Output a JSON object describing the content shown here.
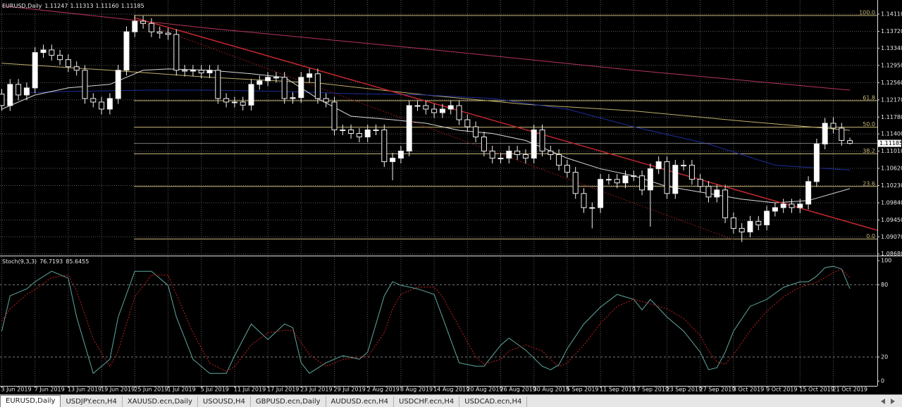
{
  "chart_data": [
    {
      "type": "candlestick",
      "title": "EURUSD,Daily",
      "ohlc_labels": [
        "1.11247",
        "1.11313",
        "1.11160",
        "1.11185"
      ],
      "categories": [
        "3 Jun 2019",
        null,
        null,
        null,
        "7 Jun 2019",
        null,
        null,
        null,
        "13 Jun 2019",
        null,
        null,
        null,
        "19 Jun 2019",
        null,
        null,
        null,
        "25 Jun 2019",
        null,
        null,
        null,
        "1 Jul 2019",
        null,
        null,
        null,
        "5 Jul 2019",
        null,
        null,
        null,
        "11 Jul 2019",
        null,
        null,
        null,
        "17 Jul 2019",
        null,
        null,
        null,
        "23 Jul 2019",
        null,
        null,
        null,
        "29 Jul 2019",
        null,
        null,
        null,
        "2 Aug 2019",
        null,
        null,
        null,
        "8 Aug 2019",
        null,
        null,
        null,
        "14 Aug 2019",
        null,
        null,
        null,
        "20 Aug 2019",
        null,
        null,
        null,
        "26 Aug 2019",
        null,
        null,
        null,
        "30 Aug 2019",
        null,
        null,
        null,
        "5 Sep 2019",
        null,
        null,
        null,
        "11 Sep 2019",
        null,
        null,
        null,
        "17 Sep 2019",
        null,
        null,
        null,
        "23 Sep 2019",
        null,
        null,
        null,
        "27 Sep 2019",
        null,
        null,
        null,
        "3 Oct 2019",
        null,
        null,
        null,
        "9 Oct 2019",
        null,
        null,
        null,
        "15 Oct 2019",
        null,
        null,
        null,
        "21 Oct 2019",
        null,
        null
      ],
      "open": [
        1.123,
        1.1204,
        1.1252,
        1.1228,
        1.1244,
        1.1324,
        1.133,
        1.1318,
        1.1308,
        1.1292,
        1.1284,
        1.122,
        1.1212,
        1.1196,
        1.122,
        1.1284,
        1.1371,
        1.1395,
        1.139,
        1.1371,
        1.1368,
        1.1365,
        1.1284,
        1.1282,
        1.1284,
        1.1278,
        1.1284,
        1.122,
        1.1212,
        1.1212,
        1.1205,
        1.1252,
        1.126,
        1.1268,
        1.1268,
        1.122,
        1.1222,
        1.1268,
        1.1276,
        1.122,
        1.1212,
        1.1149,
        1.1149,
        1.1141,
        1.1133,
        1.1149,
        1.1149,
        1.1077,
        1.1085,
        1.1101,
        1.1204,
        1.1204,
        1.1196,
        1.1188,
        1.1196,
        1.1204,
        1.1172,
        1.1156,
        1.1133,
        1.1101,
        1.1085,
        1.1085,
        1.1101,
        1.1093,
        1.1085,
        1.1149,
        1.1101,
        1.1093,
        1.1069,
        1.1053,
        1.1005,
        1.0973,
        1.0973,
        1.1037,
        1.1037,
        1.1029,
        1.1045,
        1.1045,
        1.1013,
        1.1061,
        1.1077,
        1.1005,
        1.1069,
        1.1069,
        1.1037,
        1.1021,
        1.0997,
        1.1013,
        1.095,
        1.0926,
        1.0918,
        1.0942,
        1.0934,
        1.0965,
        1.0973,
        1.0981,
        1.0973,
        1.0981,
        1.1032,
        1.1117,
        1.1164,
        1.1153,
        1.11247
      ],
      "high": [
        1.1242,
        1.1264,
        1.1264,
        1.1256,
        1.1336,
        1.1342,
        1.1342,
        1.133,
        1.132,
        1.1304,
        1.1296,
        1.1232,
        1.1224,
        1.1232,
        1.1296,
        1.1383,
        1.1408,
        1.1407,
        1.1402,
        1.1383,
        1.138,
        1.1377,
        1.1296,
        1.1296,
        1.1296,
        1.1296,
        1.1296,
        1.1232,
        1.1224,
        1.1224,
        1.1264,
        1.1272,
        1.128,
        1.128,
        1.128,
        1.1234,
        1.128,
        1.1288,
        1.1288,
        1.1232,
        1.1224,
        1.1161,
        1.1161,
        1.1153,
        1.1161,
        1.1161,
        1.1161,
        1.1097,
        1.1113,
        1.1216,
        1.1216,
        1.1216,
        1.1208,
        1.1208,
        1.1216,
        1.1216,
        1.1184,
        1.1168,
        1.1145,
        1.1113,
        1.1097,
        1.1113,
        1.1113,
        1.1105,
        1.1161,
        1.1161,
        1.1113,
        1.1105,
        1.1081,
        1.1065,
        1.1017,
        1.0985,
        1.1049,
        1.1049,
        1.1049,
        1.1057,
        1.1057,
        1.1057,
        1.1073,
        1.1089,
        1.1089,
        1.1081,
        1.1081,
        1.1081,
        1.1049,
        1.1033,
        1.1025,
        1.1025,
        1.0962,
        1.0938,
        1.0954,
        1.0954,
        1.0977,
        1.0985,
        1.0993,
        1.0993,
        1.0993,
        1.1044,
        1.1129,
        1.1176,
        1.1178,
        1.1165,
        1.11313
      ],
      "low": [
        1.1192,
        1.1192,
        1.1216,
        1.1216,
        1.1232,
        1.1312,
        1.1306,
        1.1296,
        1.128,
        1.1272,
        1.1208,
        1.12,
        1.1184,
        1.1184,
        1.1208,
        1.1272,
        1.1359,
        1.1378,
        1.1359,
        1.1356,
        1.1353,
        1.1272,
        1.127,
        1.127,
        1.1266,
        1.1266,
        1.1208,
        1.12,
        1.12,
        1.1193,
        1.1193,
        1.124,
        1.1248,
        1.1256,
        1.1208,
        1.1208,
        1.121,
        1.1256,
        1.1208,
        1.12,
        1.1137,
        1.1137,
        1.1129,
        1.1121,
        1.1121,
        1.1137,
        1.1065,
        1.1035,
        1.1073,
        1.1089,
        1.1192,
        1.1184,
        1.1176,
        1.1176,
        1.1184,
        1.116,
        1.1144,
        1.1121,
        1.1089,
        1.1073,
        1.1073,
        1.1073,
        1.1081,
        1.1073,
        1.1073,
        1.1089,
        1.1081,
        1.1057,
        1.1041,
        1.0993,
        1.0961,
        1.0926,
        1.0961,
        1.1025,
        1.1017,
        1.1017,
        1.1033,
        1.1001,
        1.093,
        1.1049,
        1.0993,
        1.0993,
        1.1057,
        1.1025,
        1.1009,
        1.0985,
        1.0985,
        1.0938,
        1.0914,
        1.0895,
        1.0906,
        1.0922,
        1.0922,
        1.0953,
        1.0961,
        1.0961,
        1.0961,
        1.0969,
        1.102,
        1.1105,
        1.1141,
        1.1113,
        1.1116
      ],
      "close": [
        1.1204,
        1.1252,
        1.1228,
        1.1244,
        1.1324,
        1.133,
        1.1318,
        1.1308,
        1.1292,
        1.1284,
        1.122,
        1.1212,
        1.1196,
        1.122,
        1.1284,
        1.1371,
        1.1395,
        1.139,
        1.1371,
        1.1368,
        1.1365,
        1.1284,
        1.1282,
        1.1284,
        1.1278,
        1.1284,
        1.122,
        1.1212,
        1.1212,
        1.1205,
        1.1252,
        1.126,
        1.1268,
        1.1268,
        1.122,
        1.1222,
        1.1268,
        1.1276,
        1.122,
        1.1212,
        1.1149,
        1.1149,
        1.1141,
        1.1133,
        1.1149,
        1.1149,
        1.1077,
        1.1085,
        1.1101,
        1.1204,
        1.1204,
        1.1196,
        1.1188,
        1.1196,
        1.1204,
        1.1172,
        1.1156,
        1.1133,
        1.1101,
        1.1085,
        1.1085,
        1.1101,
        1.1093,
        1.1085,
        1.1149,
        1.1101,
        1.1093,
        1.1069,
        1.1053,
        1.1005,
        1.0973,
        1.0973,
        1.1037,
        1.1037,
        1.1029,
        1.1045,
        1.1045,
        1.1013,
        1.1061,
        1.1077,
        1.1005,
        1.1069,
        1.1069,
        1.1037,
        1.1021,
        1.0997,
        1.1013,
        1.095,
        1.0926,
        1.0918,
        1.0942,
        1.0934,
        1.0965,
        1.0973,
        1.0981,
        1.0973,
        1.0981,
        1.1032,
        1.1117,
        1.1164,
        1.1153,
        1.1125,
        1.11185
      ],
      "bull_color": "#ffffff",
      "bear_color": "#000000",
      "moving_averages": [
        {
          "color": "#b4365a",
          "x": [
            0,
            25,
            51,
            76,
            102
          ],
          "values": [
            1.143,
            1.1379,
            1.1332,
            1.1284,
            1.1239
          ]
        },
        {
          "color": "#bfae6a",
          "x": [
            0,
            13,
            25,
            38,
            51,
            63,
            76,
            89,
            102
          ],
          "values": [
            1.13,
            1.1284,
            1.1268,
            1.1255,
            1.1228,
            1.1207,
            1.1192,
            1.1169,
            1.1148
          ]
        },
        {
          "color": "#1c2f9c",
          "x": [
            3,
            8,
            17,
            25,
            34,
            42,
            51,
            59,
            68,
            76,
            85,
            93,
            102
          ],
          "values": [
            1.1233,
            1.1236,
            1.1239,
            1.1239,
            1.1236,
            1.1231,
            1.1228,
            1.122,
            1.1196,
            1.1156,
            1.1117,
            1.1069,
            1.1058
          ]
        },
        {
          "color": "#d8d8d8",
          "x": [
            0,
            4,
            8,
            13,
            17,
            20,
            25,
            30,
            34,
            38,
            42,
            47,
            51,
            55,
            59,
            63,
            68,
            72,
            76,
            80,
            85,
            89,
            93,
            97,
            102
          ],
          "values": [
            1.1196,
            1.1228,
            1.1244,
            1.1252,
            1.1284,
            1.1287,
            1.1284,
            1.1276,
            1.1268,
            1.122,
            1.118,
            1.1172,
            1.1164,
            1.1148,
            1.1141,
            1.1125,
            1.1085,
            1.1061,
            1.1045,
            1.1021,
            1.1005,
            1.0992,
            1.0984,
            1.0989,
            1.1016
          ]
        }
      ],
      "fibo": {
        "color": "#c8b878",
        "levels": [
          {
            "label": "100.0",
            "price": 1.1408
          },
          {
            "label": "61.8",
            "price": 1.1215
          },
          {
            "label": "50.0",
            "price": 1.1155
          },
          {
            "label": "38.2",
            "price": 1.1095
          },
          {
            "label": "23.6",
            "price": 1.1021
          },
          {
            "label": "0.0",
            "price": 1.0902
          }
        ]
      },
      "ylim": [
        1.0866,
        1.1443
      ],
      "yticks": [
        {
          "value": 1.1411,
          "label": "1.14110"
        },
        {
          "value": 1.1372,
          "label": "1.13720"
        },
        {
          "value": 1.1334,
          "label": "1.13340"
        },
        {
          "value": 1.1295,
          "label": "1.12950"
        },
        {
          "value": 1.1256,
          "label": "1.12560"
        },
        {
          "value": 1.1217,
          "label": "1.12170"
        },
        {
          "value": 1.1178,
          "label": "1.11780"
        },
        {
          "value": 1.114,
          "label": "1.11400"
        },
        {
          "value": 1.1101,
          "label": "1.11010"
        },
        {
          "value": 1.1062,
          "label": "1.10620"
        },
        {
          "value": 1.1023,
          "label": "1.10230"
        },
        {
          "value": 1.0984,
          "label": "1.09840"
        },
        {
          "value": 1.0945,
          "label": "1.09450"
        },
        {
          "value": 1.0907,
          "label": "1.09070"
        },
        {
          "value": 1.0868,
          "label": "1.08680"
        }
      ],
      "grid": true
    },
    {
      "type": "line",
      "title": "Stoch(9,3,3)",
      "x": [
        0,
        1,
        3,
        4,
        6,
        8,
        9,
        11,
        13,
        14,
        16,
        18,
        20,
        21,
        23,
        25,
        27,
        28,
        30,
        32,
        34,
        35,
        36,
        37,
        39,
        41,
        43,
        44,
        46,
        47,
        48,
        50,
        52,
        53,
        55,
        57,
        58,
        60,
        61,
        63,
        65,
        66,
        67,
        68,
        70,
        72,
        74,
        76,
        77,
        78,
        80,
        82,
        84,
        85,
        86,
        87,
        88,
        90,
        92,
        94,
        96,
        97,
        98,
        99,
        100,
        101,
        102
      ],
      "series": [
        {
          "color": "#5fa8a0",
          "dashed": false,
          "values": [
            41.5,
            70.8,
            76.6,
            82.5,
            91.2,
            85.4,
            53.2,
            6.4,
            18.1,
            53.2,
            91.2,
            91.2,
            79.5,
            53.2,
            18.1,
            6.4,
            6.4,
            21.1,
            47.4,
            34.5,
            47.4,
            44.4,
            15.2,
            6.4,
            15.2,
            21.1,
            18.1,
            24.0,
            70.8,
            82.5,
            79.5,
            76.6,
            71.9,
            53.2,
            15.2,
            12.3,
            12.3,
            29.8,
            35.7,
            25.7,
            12.3,
            9.4,
            13.5,
            26.9,
            47.4,
            61.4,
            71.9,
            67.8,
            59.1,
            67.8,
            53.2,
            41.5,
            24.0,
            9.4,
            11.1,
            24.0,
            41.5,
            62.0,
            67.8,
            77.8,
            82.5,
            82.5,
            87.1,
            94.2,
            95.3,
            93.0,
            76.7193
          ]
        },
        {
          "color": "#c02020",
          "dashed": true,
          "values": [
            50,
            60,
            72,
            76,
            86,
            88,
            75,
            35,
            12,
            25,
            70,
            88,
            88,
            72,
            40,
            15,
            8,
            12,
            30,
            40,
            42,
            42,
            32,
            22,
            12,
            18,
            20,
            20,
            40,
            60,
            72,
            78,
            78,
            70,
            45,
            20,
            14,
            18,
            25,
            30,
            25,
            18,
            12,
            15,
            30,
            48,
            62,
            68,
            66,
            64,
            60,
            52,
            38,
            25,
            16,
            14,
            22,
            42,
            58,
            70,
            78,
            80,
            82,
            86,
            90,
            93,
            85.6455
          ]
        }
      ],
      "levels": [
        20,
        80
      ],
      "ylim": [
        -4,
        103
      ],
      "yticks": [
        100,
        80,
        20,
        0
      ]
    }
  ],
  "tabs": [
    "EURUSD,Daily",
    "USDJPY.ecn,H4",
    "XAUUSD.ecn,Daily",
    "USOUSD,H4",
    "GBPUSD.ecn,Daily",
    "AUDUSD.ecn,H4",
    "USDCHF.ecn,H4",
    "USDCAD.ecn,H4"
  ],
  "active_tab": 0
}
